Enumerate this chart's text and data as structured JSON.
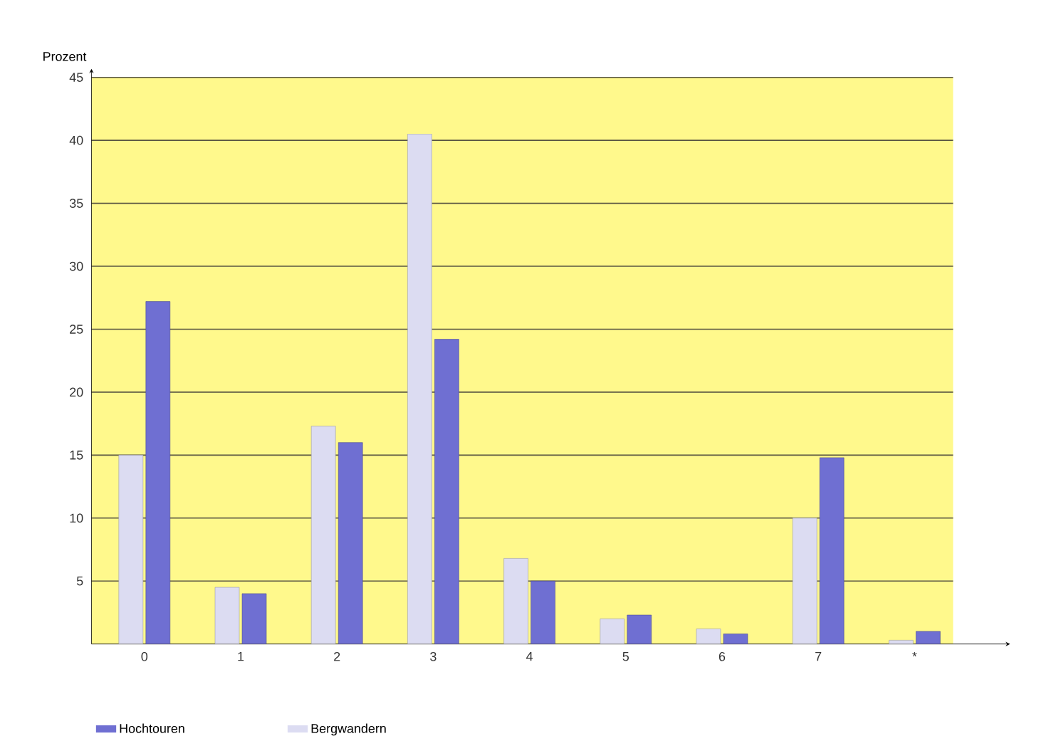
{
  "chart_data": {
    "type": "bar",
    "ylabel": "Prozent",
    "categories": [
      "0",
      "1",
      "2",
      "3",
      "4",
      "5",
      "6",
      "7",
      "*"
    ],
    "series": [
      {
        "name": "Hochtouren",
        "color": "#6f6fd2",
        "values": [
          27.2,
          4,
          16,
          24.2,
          5,
          2.3,
          0.8,
          14.8,
          1
        ]
      },
      {
        "name": "Bergwandern",
        "color": "#dcdcf2",
        "values": [
          15,
          4.5,
          17.3,
          40.5,
          6.8,
          2,
          1.2,
          10,
          0.3
        ]
      }
    ],
    "ylim": [
      0,
      45
    ],
    "yticks": [
      5,
      10,
      15,
      20,
      25,
      30,
      35,
      40,
      45
    ],
    "grid": "y",
    "legend": "bottom"
  }
}
